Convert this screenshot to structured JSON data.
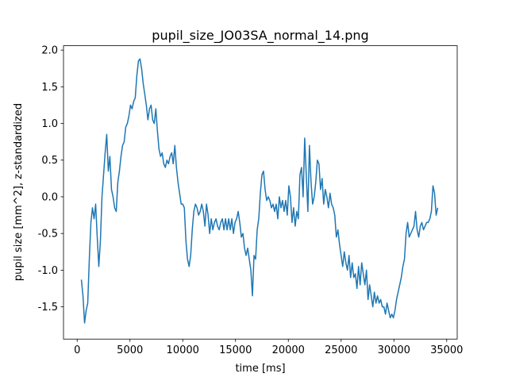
{
  "chart_data": {
    "type": "line",
    "title": "pupil_size_JO03SA_normal_14.png",
    "xlabel": "time [ms]",
    "ylabel": "pupil size [mm^2], z-standardized",
    "xlim": [
      -1295,
      35995
    ],
    "ylim": [
      -1.94,
      2.06
    ],
    "xticks": [
      0,
      5000,
      10000,
      15000,
      20000,
      25000,
      30000,
      35000
    ],
    "yticks": [
      -1.5,
      {
        "value": -1.0,
        "label": "-1.0"
      },
      -0.5,
      {
        "value": 0.0,
        "label": "0.0"
      },
      0.5,
      {
        "value": 1.0,
        "label": "1.0"
      },
      1.5,
      {
        "value": 2.0,
        "label": "2.0"
      }
    ],
    "grid": false,
    "x": [
      400,
      550,
      700,
      850,
      1000,
      1150,
      1300,
      1450,
      1600,
      1750,
      1900,
      2050,
      2200,
      2350,
      2500,
      2650,
      2800,
      2950,
      3100,
      3250,
      3400,
      3550,
      3700,
      3850,
      4000,
      4150,
      4300,
      4450,
      4600,
      4750,
      4900,
      5050,
      5200,
      5350,
      5500,
      5650,
      5800,
      5950,
      6100,
      6250,
      6400,
      6550,
      6700,
      6850,
      7000,
      7150,
      7300,
      7450,
      7600,
      7750,
      7900,
      8050,
      8200,
      8350,
      8500,
      8650,
      8800,
      8950,
      9100,
      9250,
      9400,
      9550,
      9700,
      9850,
      10000,
      10150,
      10300,
      10450,
      10600,
      10750,
      10900,
      11050,
      11200,
      11350,
      11500,
      11650,
      11800,
      11950,
      12100,
      12250,
      12400,
      12550,
      12700,
      12850,
      13000,
      13150,
      13300,
      13450,
      13600,
      13750,
      13900,
      14050,
      14200,
      14350,
      14500,
      14650,
      14800,
      14950,
      15100,
      15250,
      15400,
      15550,
      15700,
      15850,
      16000,
      16150,
      16300,
      16450,
      16600,
      16750,
      16900,
      17050,
      17200,
      17350,
      17500,
      17650,
      17800,
      17950,
      18100,
      18250,
      18400,
      18550,
      18700,
      18850,
      19000,
      19150,
      19300,
      19450,
      19600,
      19750,
      19900,
      20050,
      20200,
      20350,
      20500,
      20650,
      20800,
      20950,
      21100,
      21250,
      21400,
      21550,
      21700,
      21850,
      22000,
      22150,
      22300,
      22450,
      22600,
      22750,
      22900,
      23050,
      23200,
      23350,
      23500,
      23650,
      23800,
      23950,
      24100,
      24250,
      24400,
      24550,
      24700,
      24850,
      25000,
      25150,
      25300,
      25450,
      25600,
      25750,
      25900,
      26050,
      26200,
      26350,
      26500,
      26650,
      26800,
      26950,
      27100,
      27250,
      27400,
      27550,
      27700,
      27850,
      28000,
      28150,
      28300,
      28450,
      28600,
      28750,
      28900,
      29050,
      29200,
      29350,
      29500,
      29650,
      29800,
      29950,
      30100,
      30250,
      30400,
      30550,
      30700,
      30850,
      31000,
      31150,
      31300,
      31450,
      31600,
      31750,
      31900,
      32050,
      32200,
      32350,
      32500,
      32650,
      32800,
      32950,
      33100,
      33250,
      33400,
      33550,
      33700,
      33850,
      34000,
      34150
    ],
    "series": [
      {
        "color": "#1f77b4",
        "values": [
          -1.13,
          -1.35,
          -1.72,
          -1.55,
          -1.45,
          -0.85,
          -0.35,
          -0.15,
          -0.3,
          -0.1,
          -0.55,
          -0.95,
          -0.6,
          0.0,
          0.3,
          0.6,
          0.85,
          0.35,
          0.55,
          0.1,
          0.0,
          -0.15,
          -0.2,
          0.2,
          0.35,
          0.55,
          0.7,
          0.75,
          0.95,
          1.0,
          1.1,
          1.25,
          1.2,
          1.3,
          1.35,
          1.65,
          1.85,
          1.88,
          1.75,
          1.55,
          1.4,
          1.25,
          1.05,
          1.2,
          1.25,
          1.05,
          1.0,
          1.2,
          0.9,
          0.65,
          0.55,
          0.6,
          0.45,
          0.4,
          0.5,
          0.45,
          0.55,
          0.6,
          0.45,
          0.7,
          0.4,
          0.2,
          0.05,
          -0.1,
          -0.1,
          -0.15,
          -0.6,
          -0.85,
          -0.95,
          -0.8,
          -0.45,
          -0.2,
          -0.1,
          -0.15,
          -0.25,
          -0.2,
          -0.1,
          -0.2,
          -0.4,
          -0.1,
          -0.25,
          -0.5,
          -0.3,
          -0.45,
          -0.35,
          -0.3,
          -0.4,
          -0.45,
          -0.35,
          -0.3,
          -0.45,
          -0.3,
          -0.45,
          -0.3,
          -0.45,
          -0.3,
          -0.5,
          -0.35,
          -0.3,
          -0.2,
          -0.35,
          -0.55,
          -0.5,
          -0.7,
          -0.8,
          -0.7,
          -0.85,
          -1.0,
          -1.35,
          -0.8,
          -0.85,
          -0.45,
          -0.3,
          0.05,
          0.3,
          0.35,
          0.1,
          -0.05,
          0.0,
          -0.05,
          -0.15,
          -0.1,
          -0.2,
          -0.1,
          -0.3,
          0.0,
          -0.15,
          -0.05,
          -0.2,
          -0.05,
          -0.25,
          0.15,
          0.0,
          -0.35,
          -0.15,
          -0.4,
          -0.2,
          -0.3,
          0.3,
          0.4,
          0.0,
          0.8,
          0.3,
          -0.2,
          0.7,
          0.2,
          -0.1,
          0.0,
          0.2,
          0.5,
          0.45,
          0.1,
          0.25,
          -0.1,
          0.1,
          0.0,
          -0.15,
          0.05,
          -0.1,
          -0.15,
          -0.25,
          -0.55,
          -0.45,
          -0.65,
          -0.8,
          -0.95,
          -0.75,
          -0.9,
          -1.0,
          -0.8,
          -1.1,
          -0.9,
          -1.1,
          -1.05,
          -1.25,
          -0.95,
          -1.2,
          -0.9,
          -1.05,
          -1.2,
          -1.0,
          -1.4,
          -1.2,
          -1.35,
          -1.5,
          -1.3,
          -1.45,
          -1.35,
          -1.45,
          -1.4,
          -1.5,
          -1.5,
          -1.6,
          -1.45,
          -1.55,
          -1.65,
          -1.6,
          -1.65,
          -1.55,
          -1.4,
          -1.3,
          -1.2,
          -1.1,
          -0.95,
          -0.85,
          -0.5,
          -0.35,
          -0.55,
          -0.5,
          -0.45,
          -0.4,
          -0.2,
          -0.45,
          -0.55,
          -0.4,
          -0.35,
          -0.45,
          -0.4,
          -0.35,
          -0.35,
          -0.3,
          -0.2,
          0.15,
          0.05,
          -0.25,
          -0.15
        ]
      }
    ]
  }
}
